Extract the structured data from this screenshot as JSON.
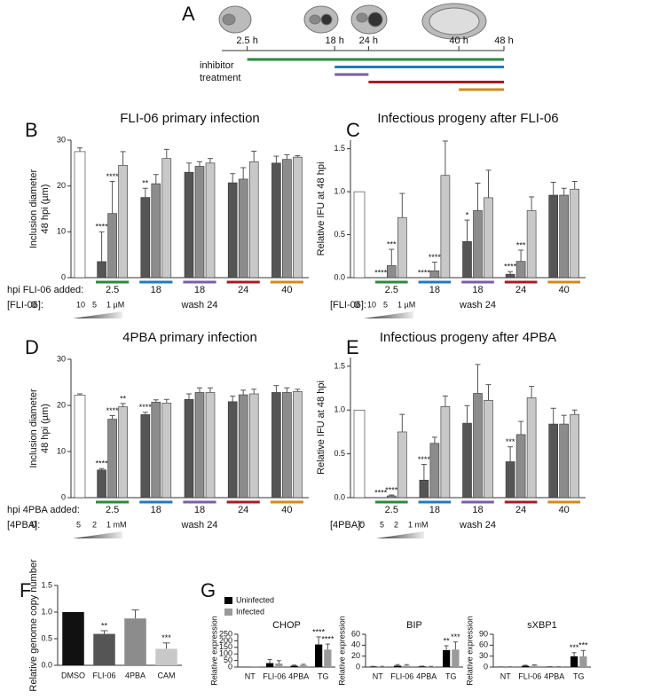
{
  "timeline": {
    "label": "A",
    "xlim": [
      -2,
      48
    ],
    "ticks": [
      {
        "value": 2.5,
        "label": "2.5 h"
      },
      {
        "value": 18,
        "label": "18 h"
      },
      {
        "value": 24,
        "label": "24 h"
      },
      {
        "value": 40,
        "label": "40 h"
      },
      {
        "value": 48,
        "label": "48 h"
      }
    ],
    "treatment_label": [
      "inhibitor",
      "treatment"
    ],
    "treatments": [
      {
        "start": 2.5,
        "end": 48,
        "color": "#2a8a3e"
      },
      {
        "start": 18,
        "end": 48,
        "color": "#1f7bbf"
      },
      {
        "start": 18,
        "end": 24,
        "color": "#7b5ea7"
      },
      {
        "start": 24,
        "end": 48,
        "color": "#a51c24"
      },
      {
        "start": 40,
        "end": 48,
        "color": "#d4891c"
      }
    ]
  },
  "chart_data": [
    {
      "type": "grouped_bar",
      "label": "B",
      "title": "FLI-06 primary infection",
      "ylabel": [
        "Inclusion diameter",
        "48 hpi (µm)"
      ],
      "ylim": [
        0,
        30
      ],
      "yticks": [
        0,
        10,
        20,
        30
      ],
      "bar_colors": [
        "#555555",
        "#8c8c8c",
        "#c8c8c8"
      ],
      "control": {
        "value": 27.5,
        "error": 0.8,
        "color": "#ffffff"
      },
      "row_label": "hpi FLI-06 added:",
      "conc_label": "[FLI-06]:",
      "conc_ticks": [
        "0",
        "10",
        "5",
        "1 µM"
      ],
      "groups": [
        {
          "label": "2.5",
          "color": "#2a8a3e",
          "values": [
            3.5,
            14,
            24.5
          ],
          "errors": [
            6.5,
            7,
            3
          ],
          "significance": [
            "****",
            "****",
            null
          ]
        },
        {
          "label": "18",
          "color": "#1f7bbf",
          "values": [
            17.5,
            20.5,
            26
          ],
          "errors": [
            2,
            2,
            2
          ],
          "significance": [
            "**",
            null,
            null
          ]
        },
        {
          "label": "18",
          "note": "wash 24",
          "color": "#7b5ea7",
          "values": [
            23,
            24.3,
            25
          ],
          "errors": [
            2,
            1,
            1
          ],
          "significance": [
            null,
            null,
            null
          ]
        },
        {
          "label": "24",
          "color": "#a51c24",
          "values": [
            20.7,
            21.5,
            25.3
          ],
          "errors": [
            2,
            2.5,
            2.3
          ],
          "significance": [
            null,
            null,
            null
          ]
        },
        {
          "label": "40",
          "color": "#d4891c",
          "values": [
            25,
            25.8,
            26.3
          ],
          "errors": [
            1.5,
            1,
            0.3
          ],
          "significance": [
            null,
            null,
            null
          ]
        }
      ]
    },
    {
      "type": "grouped_bar",
      "label": "C",
      "title": "Infectious progeny after FLI-06",
      "ylabel": "Relative IFU at 48 hpi",
      "ylim": [
        0,
        1.6
      ],
      "yticks": [
        {
          "value": 0,
          "label": "0.0"
        },
        0.5,
        {
          "value": 1,
          "label": "1.0"
        },
        1.5
      ],
      "bar_colors": [
        "#555555",
        "#8c8c8c",
        "#c8c8c8"
      ],
      "control": {
        "value": 1.0,
        "error": 0,
        "color": "#ffffff"
      },
      "conc_label": "[FLI-06]:",
      "conc_ticks": [
        "0",
        "10",
        "5",
        "1 µM"
      ],
      "groups": [
        {
          "label": "2.5",
          "color": "#2a8a3e",
          "values": [
            0,
            0.14,
            0.7
          ],
          "errors": [
            0,
            0.19,
            0.28
          ],
          "significance": [
            "****",
            "***",
            null
          ]
        },
        {
          "label": "18",
          "color": "#1f7bbf",
          "values": [
            0,
            0.08,
            1.19
          ],
          "errors": [
            0,
            0.1,
            0.4
          ],
          "significance": [
            "****",
            "****",
            null
          ]
        },
        {
          "label": "18",
          "note": "wash 24",
          "color": "#7b5ea7",
          "values": [
            0.42,
            0.78,
            0.93
          ],
          "errors": [
            0.25,
            0.32,
            0.32
          ],
          "significance": [
            "*",
            null,
            null
          ]
        },
        {
          "label": "24",
          "color": "#a51c24",
          "values": [
            0.04,
            0.19,
            0.78
          ],
          "errors": [
            0.03,
            0.13,
            0.16
          ],
          "significance": [
            "****",
            "***",
            null
          ]
        },
        {
          "label": "40",
          "color": "#d4891c",
          "values": [
            0.96,
            0.96,
            1.03
          ],
          "errors": [
            0.15,
            0.08,
            0.09
          ],
          "significance": [
            null,
            null,
            null
          ]
        }
      ]
    },
    {
      "type": "grouped_bar",
      "label": "D",
      "title": "4PBA primary infection",
      "ylabel": [
        "Inclusion diameter",
        "48 hpi (µm)"
      ],
      "ylim": [
        0,
        30
      ],
      "yticks": [
        0,
        10,
        20,
        30
      ],
      "bar_colors": [
        "#555555",
        "#8c8c8c",
        "#c8c8c8"
      ],
      "control": {
        "value": 22.2,
        "error": 0.3,
        "color": "#ffffff"
      },
      "row_label": "hpi 4PBA added:",
      "conc_label": "[4PBA]:",
      "conc_ticks": [
        "0",
        "5",
        "2",
        "1 mM"
      ],
      "groups": [
        {
          "label": "2.5",
          "color": "#2a8a3e",
          "values": [
            6,
            17,
            19.7
          ],
          "errors": [
            0.3,
            0.8,
            0.7
          ],
          "significance": [
            "****",
            "****",
            "**"
          ]
        },
        {
          "label": "18",
          "color": "#1f7bbf",
          "values": [
            18,
            20.7,
            20.5
          ],
          "errors": [
            0.5,
            0.5,
            0.8
          ],
          "significance": [
            "****",
            null,
            null
          ]
        },
        {
          "label": "18",
          "note": "wash 24",
          "color": "#7b5ea7",
          "values": [
            21.3,
            22.8,
            22.8
          ],
          "errors": [
            1.2,
            1,
            1
          ],
          "significance": [
            null,
            null,
            null
          ]
        },
        {
          "label": "24",
          "color": "#a51c24",
          "values": [
            20.8,
            22.3,
            22.5
          ],
          "errors": [
            1.2,
            1,
            1
          ],
          "significance": [
            null,
            null,
            null
          ]
        },
        {
          "label": "40",
          "color": "#d4891c",
          "values": [
            22.8,
            22.8,
            23
          ],
          "errors": [
            1.5,
            1,
            0.5
          ],
          "significance": [
            null,
            null,
            null
          ]
        }
      ]
    },
    {
      "type": "grouped_bar",
      "label": "E",
      "title": "Infectious progeny after 4PBA",
      "ylabel": "Relative IFU at 48 hpi",
      "ylim": [
        0,
        1.6
      ],
      "yticks": [
        {
          "value": 0,
          "label": "0.0"
        },
        0.5,
        {
          "value": 1,
          "label": "1.0"
        },
        1.5
      ],
      "bar_colors": [
        "#555555",
        "#8c8c8c",
        "#c8c8c8"
      ],
      "control": {
        "value": 1.0,
        "error": 0,
        "color": "#ffffff"
      },
      "conc_label": "[4PBA]:",
      "conc_ticks": [
        "0",
        "5",
        "2",
        "1 mM"
      ],
      "groups": [
        {
          "label": "2.5",
          "color": "#2a8a3e",
          "values": [
            0,
            0.02,
            0.75
          ],
          "errors": [
            0,
            0.01,
            0.2
          ],
          "significance": [
            "****",
            "****",
            null
          ]
        },
        {
          "label": "18",
          "color": "#1f7bbf",
          "values": [
            0.2,
            0.62,
            1.04
          ],
          "errors": [
            0.18,
            0.07,
            0.12
          ],
          "significance": [
            "****",
            null,
            null
          ]
        },
        {
          "label": "18",
          "note": "wash 24",
          "color": "#7b5ea7",
          "values": [
            0.85,
            1.19,
            1.11
          ],
          "errors": [
            0.2,
            0.33,
            0.18
          ],
          "significance": [
            null,
            null,
            null
          ]
        },
        {
          "label": "24",
          "color": "#a51c24",
          "values": [
            0.41,
            0.72,
            1.14
          ],
          "errors": [
            0.17,
            0.15,
            0.13
          ],
          "significance": [
            "***",
            null,
            null
          ]
        },
        {
          "label": "40",
          "color": "#d4891c",
          "values": [
            0.84,
            0.84,
            0.95
          ],
          "errors": [
            0.18,
            0.1,
            0.05
          ],
          "significance": [
            null,
            null,
            null
          ]
        }
      ]
    },
    {
      "type": "bar",
      "label": "F",
      "ylabel": "Relative genome copy number",
      "ylim": [
        0,
        1.5
      ],
      "yticks": [
        {
          "value": 0,
          "label": "0.0"
        },
        0.5,
        {
          "value": 1,
          "label": "1.0"
        },
        1.5
      ],
      "categories": [
        "DMSO",
        "FLI-06",
        "4PBA",
        "CAM"
      ],
      "values": [
        1.0,
        0.59,
        0.88,
        0.31
      ],
      "errors": [
        0,
        0.06,
        0.16,
        0.11
      ],
      "significance": [
        null,
        "**",
        null,
        "***"
      ],
      "colors": [
        "#111111",
        "#555555",
        "#8c8c8c",
        "#c8c8c8"
      ]
    },
    {
      "type": "multi_bar",
      "label": "G",
      "ylabel": "Relative expression",
      "categories": [
        "NT",
        "FLI-06",
        "4PBA",
        "TG"
      ],
      "series": [
        {
          "name": "Uninfected",
          "color": "#000000"
        },
        {
          "name": "Infected",
          "color": "#9a9a9a"
        }
      ],
      "panels": [
        {
          "title": "CHOP",
          "ylim": [
            0,
            250
          ],
          "yticks": [
            0,
            50,
            100,
            150,
            200,
            250
          ],
          "values": [
            [
              1,
              30,
              10,
              172
            ],
            [
              1,
              27,
              15,
              133
            ]
          ],
          "errors": [
            [
              0,
              28,
              5,
              58
            ],
            [
              0,
              22,
              6,
              42
            ]
          ],
          "significance": [
            [
              null,
              null,
              null,
              "****"
            ],
            [
              null,
              null,
              null,
              "****"
            ]
          ]
        },
        {
          "title": "BIP",
          "ylim": [
            0,
            60
          ],
          "yticks": [
            0,
            20,
            40,
            60
          ],
          "values": [
            [
              1,
              2.5,
              1.2,
              31
            ],
            [
              1,
              2.5,
              0.8,
              32
            ]
          ],
          "errors": [
            [
              0.3,
              2,
              0.5,
              8
            ],
            [
              0.3,
              2,
              0.5,
              14
            ]
          ],
          "significance": [
            [
              null,
              null,
              null,
              "**"
            ],
            [
              null,
              null,
              null,
              "***"
            ]
          ]
        },
        {
          "title": "sXBP1",
          "ylim": [
            0,
            90
          ],
          "yticks": [
            0,
            30,
            60,
            90
          ],
          "values": [
            [
              0.5,
              3.5,
              0.8,
              29.5
            ],
            [
              0.5,
              4,
              0.5,
              29.5
            ]
          ],
          "errors": [
            [
              0.2,
              1.5,
              0.3,
              10
            ],
            [
              0.2,
              2,
              0.3,
              16
            ]
          ],
          "significance": [
            [
              null,
              null,
              null,
              "***"
            ],
            [
              null,
              null,
              null,
              "***"
            ]
          ]
        }
      ]
    }
  ]
}
